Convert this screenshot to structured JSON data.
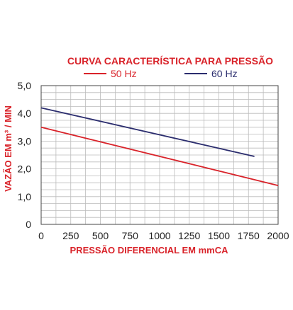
{
  "chart_data": {
    "type": "line",
    "title": "CURVA CARACTERÍSTICA PARA PRESSÃO",
    "xlabel": "PRESSÃO DIFERENCIAL EM mmCA",
    "ylabel": "VAZÃO EM m³ / MIN",
    "xlim": [
      0,
      2000
    ],
    "ylim": [
      0,
      5
    ],
    "x_ticks": [
      "0",
      "250",
      "500",
      "750",
      "1000",
      "1250",
      "1500",
      "1750",
      "2000"
    ],
    "x_tick_values": [
      0,
      250,
      500,
      750,
      1000,
      1250,
      1500,
      1750,
      2000
    ],
    "y_ticks": [
      "0",
      "1,0",
      "2,0",
      "3,0",
      "4,0",
      "5,0"
    ],
    "y_tick_values": [
      0,
      1,
      2,
      3,
      4,
      5
    ],
    "grid": true,
    "legend_placement": "top",
    "series": [
      {
        "name": "50 Hz",
        "color": "#d9232a",
        "x": [
          0,
          2000
        ],
        "y": [
          3.5,
          1.4
        ]
      },
      {
        "name": "60 Hz",
        "color": "#2b2d6e",
        "x": [
          0,
          1800
        ],
        "y": [
          4.2,
          2.45
        ]
      }
    ],
    "title_color": "#d9232a",
    "axis_label_color": "#d9232a"
  }
}
